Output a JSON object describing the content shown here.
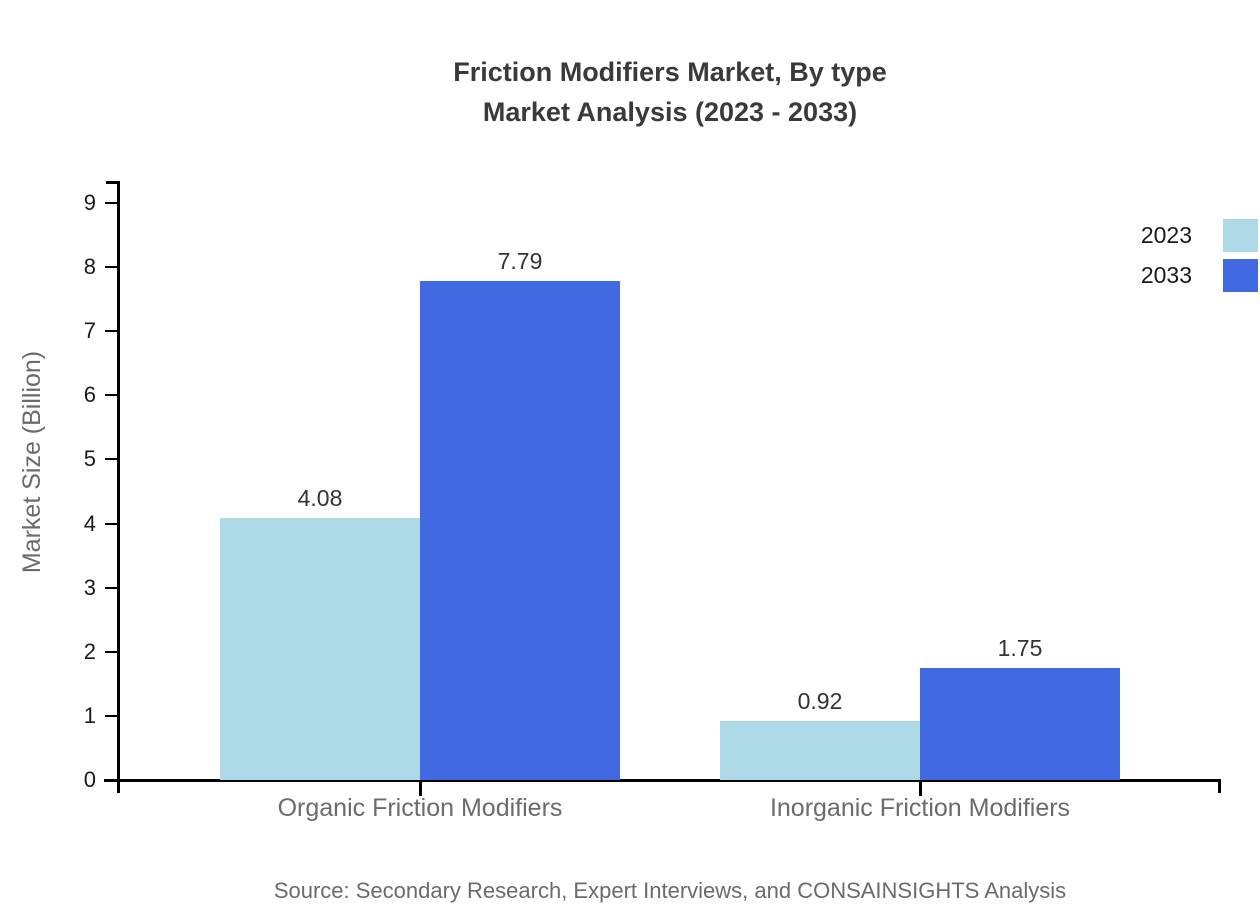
{
  "chart_data": {
    "type": "bar",
    "title_lines": [
      "Friction Modifiers Market, By type",
      "Market Analysis (2023 - 2033)"
    ],
    "categories": [
      "Organic Friction Modifiers",
      "Inorganic Friction Modifiers"
    ],
    "series": [
      {
        "name": "2023",
        "color": "#ADD8E6",
        "values": [
          4.08,
          0.92
        ]
      },
      {
        "name": "2033",
        "color": "#4169E1",
        "values": [
          7.79,
          1.75
        ]
      }
    ],
    "xlabel": "",
    "ylabel": "Market Size (Billion)",
    "ylim": [
      0,
      9
    ],
    "yticks": [
      0,
      1,
      2,
      3,
      4,
      5,
      6,
      7,
      8,
      9
    ],
    "grid": false,
    "legend_position": "top-right",
    "value_labels": true,
    "value_label_format": "2-decimals"
  },
  "footer": {
    "source": "Source: Secondary Research, Expert Interviews, and CONSAINSIGHTS Analysis"
  },
  "colors": {
    "title_text": "#3a3a3a",
    "axis_line": "#000000",
    "tick_label": "#1a1a1a",
    "category_label": "#6b6b6b",
    "value_label": "#333333",
    "muted_text": "#6b6b6b",
    "background": "#ffffff"
  }
}
